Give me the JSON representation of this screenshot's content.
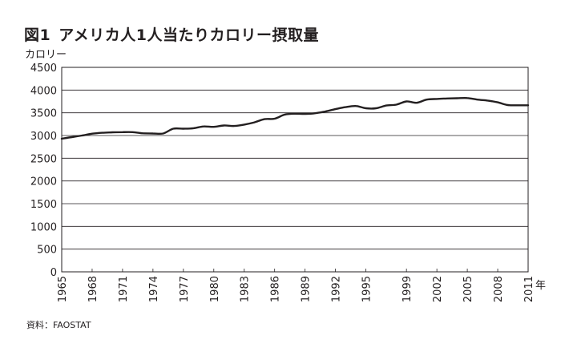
{
  "header": {
    "figure_label": "図1",
    "title": "アメリカ人1人当たりカロリー摂取量"
  },
  "source": "資料：FAOSTAT",
  "chart_data": {
    "type": "line",
    "title": "アメリカ人1人当たりカロリー摂取量",
    "ylabel": "カロリー",
    "xlabel": "年",
    "xlim": [
      1965,
      2011
    ],
    "ylim": [
      0,
      4500
    ],
    "y_ticks": [
      0,
      500,
      1000,
      1500,
      2000,
      2500,
      3000,
      3500,
      4000,
      4500
    ],
    "x_ticks": [
      1965,
      1968,
      1971,
      1974,
      1977,
      1980,
      1983,
      1986,
      1989,
      1992,
      1995,
      1999,
      2002,
      2005,
      2008,
      2011
    ],
    "grid": "horizontal",
    "line_color": "#231f20",
    "series": [
      {
        "x": [
          1965,
          1966,
          1967,
          1968,
          1969,
          1970,
          1971,
          1972,
          1973,
          1974,
          1975,
          1976,
          1977,
          1978,
          1979,
          1980,
          1981,
          1982,
          1983,
          1984,
          1985,
          1986,
          1987,
          1988,
          1989,
          1990,
          1991,
          1992,
          1993,
          1994,
          1995,
          1996,
          1997,
          1998,
          1999,
          2000,
          2001,
          2002,
          2003,
          2004,
          2005,
          2006,
          2007,
          2008,
          2009,
          2010,
          2011
        ],
        "values": [
          2930,
          2965,
          3000,
          3040,
          3060,
          3070,
          3075,
          3075,
          3050,
          3045,
          3045,
          3150,
          3150,
          3160,
          3200,
          3190,
          3220,
          3210,
          3240,
          3290,
          3360,
          3370,
          3460,
          3480,
          3475,
          3490,
          3530,
          3580,
          3625,
          3650,
          3600,
          3600,
          3660,
          3680,
          3750,
          3720,
          3790,
          3805,
          3815,
          3820,
          3825,
          3790,
          3770,
          3730,
          3670,
          3665,
          3665
        ]
      }
    ]
  }
}
